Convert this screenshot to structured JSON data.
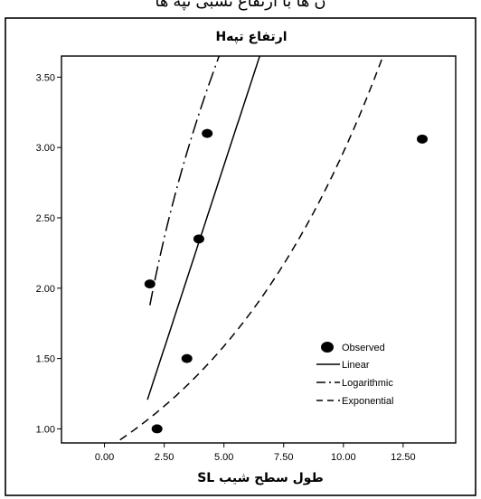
{
  "page": {
    "top_caption": "ن ها با ارتفاع نسبی تپه ها"
  },
  "chart_data": {
    "type": "scatter",
    "title": "ارتفاع تپهH",
    "xlabel": "طول سطح شیب SL",
    "ylabel": "",
    "xlim": [
      -1.8,
      14.7
    ],
    "ylim": [
      0.9,
      3.65
    ],
    "x_ticks": [
      0,
      2.5,
      5,
      7.5,
      10,
      12.5
    ],
    "x_tick_labels": [
      "0.00",
      "2.50",
      "5.00",
      "7.50",
      "10.00",
      "12.50"
    ],
    "y_ticks": [
      1,
      1.5,
      2,
      2.5,
      3,
      3.5
    ],
    "y_tick_labels": [
      "1.00",
      "1.50",
      "2.00",
      "2.50",
      "3.00",
      "3.50"
    ],
    "grid": false,
    "legend_position": "lower-right",
    "legend": [
      {
        "label": "Observed",
        "kind": "marker"
      },
      {
        "label": "Linear",
        "kind": "line",
        "dash": "solid"
      },
      {
        "label": "Logarithmic",
        "kind": "line",
        "dash": "dash-dot"
      },
      {
        "label": "Exponential",
        "kind": "line",
        "dash": "dashed"
      }
    ],
    "observed": {
      "name": "Observed",
      "points": [
        {
          "x": 2.2,
          "y": 1.0
        },
        {
          "x": 1.9,
          "y": 2.03
        },
        {
          "x": 3.45,
          "y": 1.5
        },
        {
          "x": 3.95,
          "y": 2.35
        },
        {
          "x": 4.3,
          "y": 3.1
        },
        {
          "x": 13.3,
          "y": 3.06
        }
      ]
    },
    "fits": [
      {
        "name": "Linear",
        "model": "linear",
        "a": 0.52,
        "b": 0.272,
        "x_range": [
          1.8,
          11.5
        ]
      },
      {
        "name": "Logarithmic",
        "model": "logarithmic",
        "a": 0.18,
        "b": 1.35,
        "x_range": [
          1.9,
          11.6
        ]
      },
      {
        "name": "Exponential",
        "model": "exponential",
        "a": 0.85,
        "b": 0.125,
        "x_range": [
          -1.8,
          11.7
        ]
      }
    ]
  }
}
